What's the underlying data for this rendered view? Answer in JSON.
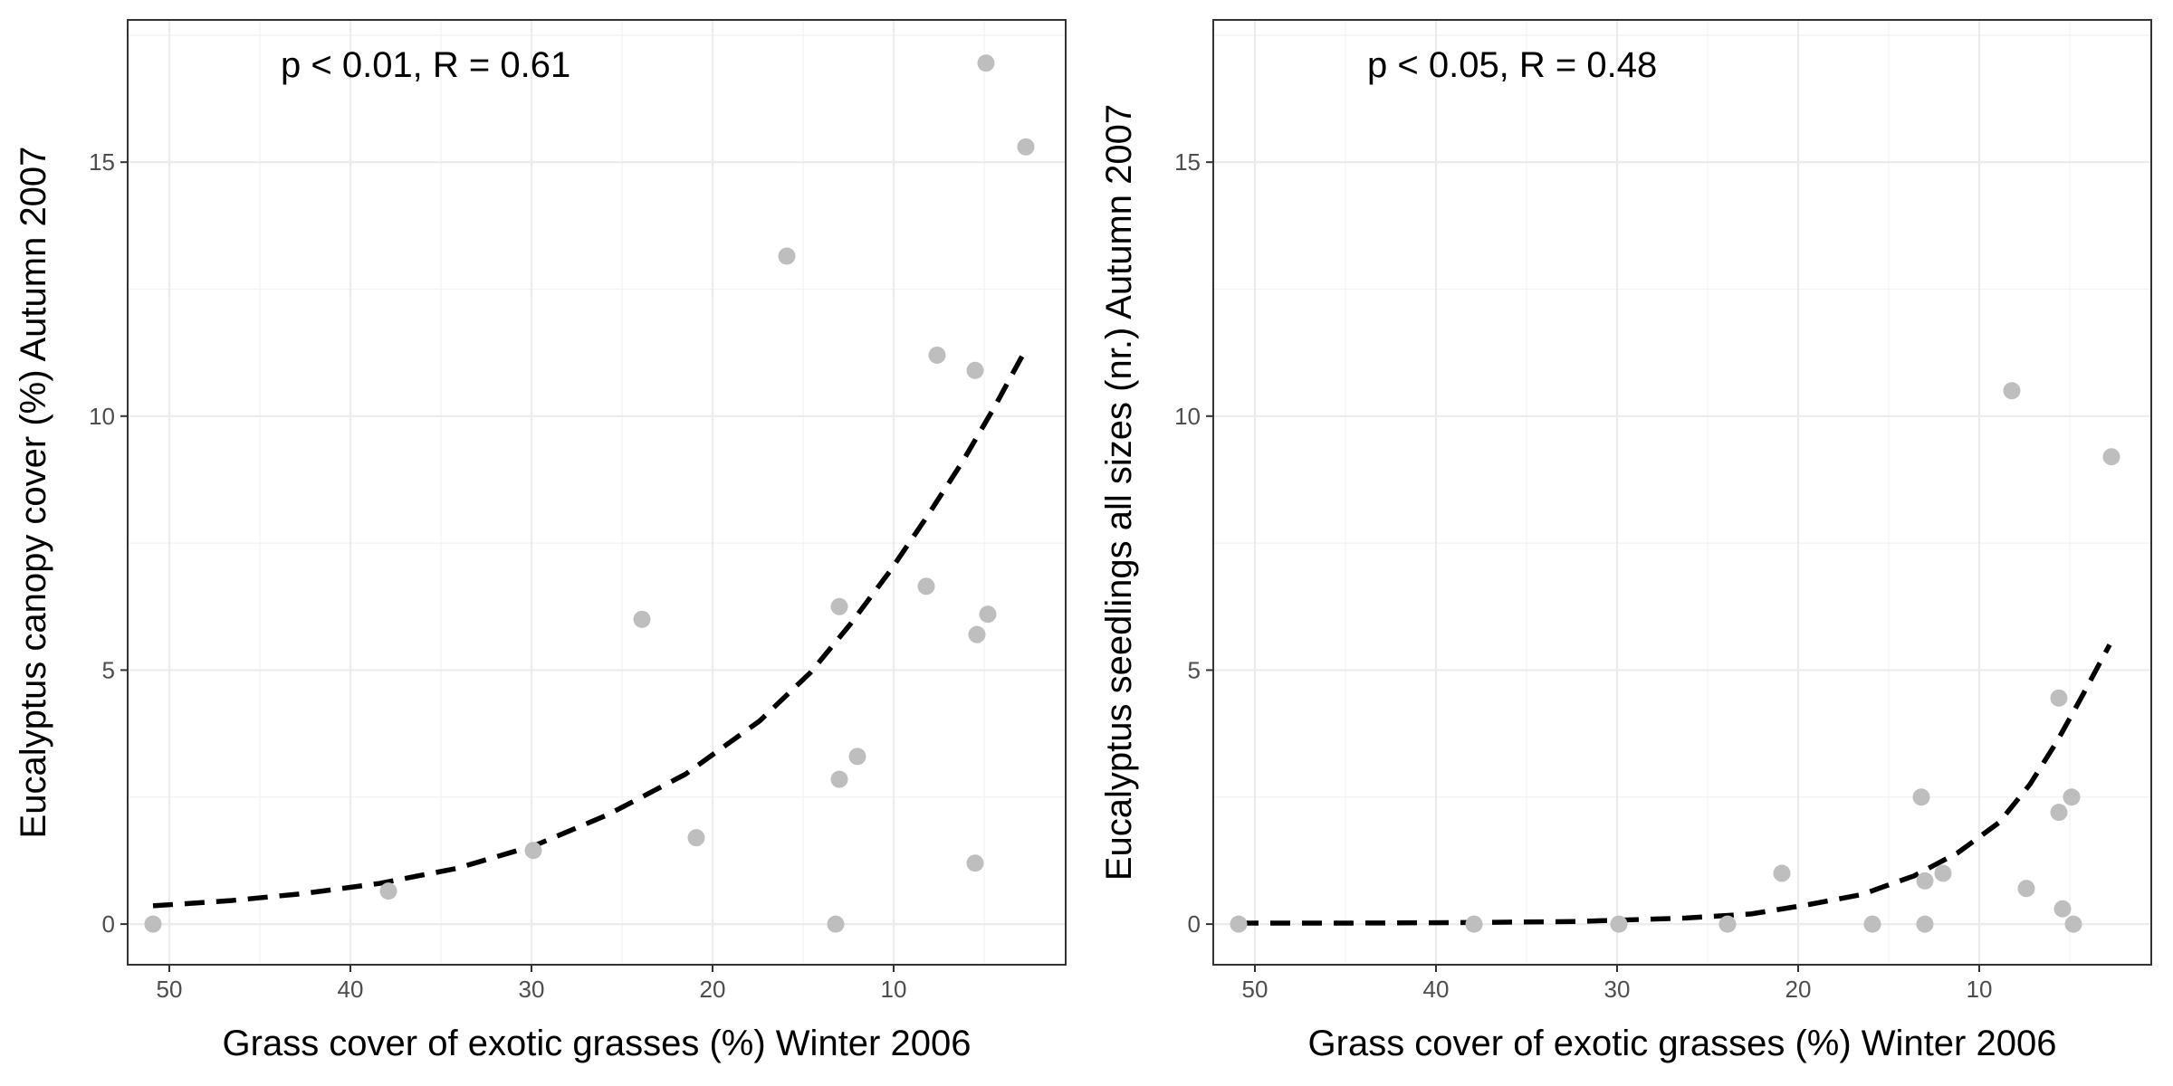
{
  "chart_data": [
    {
      "type": "scatter",
      "panel": "left",
      "annotation": "p < 0.01, R = 0.61",
      "xlabel": "Grass cover of exotic grasses (%) Winter 2006",
      "ylabel": "Eucalyptus canopy cover (%) Autumn 2007",
      "x_reversed": true,
      "xlim": [
        52.3,
        0.5
      ],
      "ylim": [
        -0.8,
        17.8
      ],
      "x_ticks": [
        50,
        40,
        30,
        20,
        10
      ],
      "x_tick_labels": [
        "50",
        "40",
        "30",
        "20",
        "10"
      ],
      "y_ticks": [
        0,
        5,
        10,
        15
      ],
      "y_tick_labels": [
        "0",
        "5",
        "10",
        "15"
      ],
      "grid": true,
      "point_color": "#bebebe",
      "points": [
        {
          "x": 50.9,
          "y": 0.0
        },
        {
          "x": 37.9,
          "y": 0.65
        },
        {
          "x": 29.9,
          "y": 1.45
        },
        {
          "x": 23.9,
          "y": 6.0
        },
        {
          "x": 20.9,
          "y": 1.7
        },
        {
          "x": 15.9,
          "y": 13.15
        },
        {
          "x": 13.2,
          "y": 0.0
        },
        {
          "x": 13.0,
          "y": 2.85
        },
        {
          "x": 13.0,
          "y": 6.25
        },
        {
          "x": 12.0,
          "y": 3.3
        },
        {
          "x": 7.6,
          "y": 11.2
        },
        {
          "x": 8.2,
          "y": 6.65
        },
        {
          "x": 5.5,
          "y": 10.9
        },
        {
          "x": 5.4,
          "y": 5.7
        },
        {
          "x": 5.5,
          "y": 1.2
        },
        {
          "x": 4.9,
          "y": 16.95
        },
        {
          "x": 4.8,
          "y": 6.1
        },
        {
          "x": 2.7,
          "y": 15.3
        }
      ],
      "fit": {
        "style": "dashed",
        "color": "#000000",
        "points": [
          {
            "x": 50.9,
            "y": 0.36
          },
          {
            "x": 46.7,
            "y": 0.46
          },
          {
            "x": 42.6,
            "y": 0.6
          },
          {
            "x": 38.4,
            "y": 0.8
          },
          {
            "x": 34.1,
            "y": 1.1
          },
          {
            "x": 29.8,
            "y": 1.55
          },
          {
            "x": 25.8,
            "y": 2.15
          },
          {
            "x": 21.5,
            "y": 2.95
          },
          {
            "x": 17.4,
            "y": 4.0
          },
          {
            "x": 14.6,
            "y": 4.95
          },
          {
            "x": 12.4,
            "y": 5.9
          },
          {
            "x": 10.2,
            "y": 6.95
          },
          {
            "x": 8.2,
            "y": 8.0
          },
          {
            "x": 6.2,
            "y": 9.1
          },
          {
            "x": 4.4,
            "y": 10.2
          },
          {
            "x": 2.8,
            "y": 11.25
          }
        ]
      }
    },
    {
      "type": "scatter",
      "panel": "right",
      "annotation": "p < 0.05, R = 0.48",
      "xlabel": "Grass cover of exotic grasses (%) Winter 2006",
      "ylabel": "Eucalyptus seedlings all sizes (nr.) Autumn 2007",
      "x_reversed": true,
      "xlim": [
        52.3,
        0.5
      ],
      "ylim": [
        -0.8,
        17.8
      ],
      "x_ticks": [
        50,
        40,
        30,
        20,
        10
      ],
      "x_tick_labels": [
        "50",
        "40",
        "30",
        "20",
        "10"
      ],
      "y_ticks": [
        0,
        5,
        10,
        15
      ],
      "y_tick_labels": [
        "0",
        "5",
        "10",
        "15"
      ],
      "grid": true,
      "point_color": "#bebebe",
      "points": [
        {
          "x": 50.9,
          "y": 0.0
        },
        {
          "x": 37.9,
          "y": 0.0
        },
        {
          "x": 29.9,
          "y": 0.0
        },
        {
          "x": 23.9,
          "y": 0.0
        },
        {
          "x": 20.9,
          "y": 1.0
        },
        {
          "x": 15.9,
          "y": 0.0
        },
        {
          "x": 13.2,
          "y": 2.5
        },
        {
          "x": 13.0,
          "y": 0.85
        },
        {
          "x": 13.0,
          "y": 0.0
        },
        {
          "x": 12.0,
          "y": 1.0
        },
        {
          "x": 8.2,
          "y": 10.5
        },
        {
          "x": 7.4,
          "y": 0.7
        },
        {
          "x": 5.6,
          "y": 4.45
        },
        {
          "x": 5.6,
          "y": 2.2
        },
        {
          "x": 5.4,
          "y": 0.3
        },
        {
          "x": 4.9,
          "y": 2.5
        },
        {
          "x": 4.8,
          "y": 0.0
        },
        {
          "x": 2.7,
          "y": 9.2
        }
      ],
      "fit": {
        "style": "dashed",
        "color": "#000000",
        "points": [
          {
            "x": 50.9,
            "y": 0.02
          },
          {
            "x": 44.7,
            "y": 0.02
          },
          {
            "x": 38.5,
            "y": 0.03
          },
          {
            "x": 32.3,
            "y": 0.05
          },
          {
            "x": 26.2,
            "y": 0.12
          },
          {
            "x": 22.6,
            "y": 0.2
          },
          {
            "x": 19.5,
            "y": 0.38
          },
          {
            "x": 16.5,
            "y": 0.58
          },
          {
            "x": 13.6,
            "y": 0.95
          },
          {
            "x": 11.2,
            "y": 1.4
          },
          {
            "x": 8.9,
            "y": 2.0
          },
          {
            "x": 7.2,
            "y": 2.75
          },
          {
            "x": 5.7,
            "y": 3.6
          },
          {
            "x": 4.3,
            "y": 4.5
          },
          {
            "x": 2.8,
            "y": 5.5
          }
        ]
      }
    }
  ]
}
